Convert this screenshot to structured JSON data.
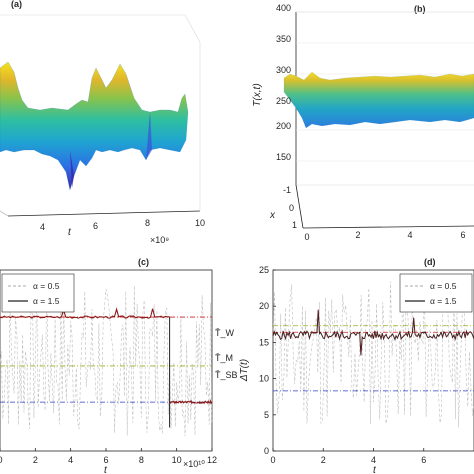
{
  "figure": {
    "panels": [
      "(a)",
      "(b)",
      "(c)",
      "(d)"
    ]
  },
  "chart_data": [
    {
      "panel": "(a)",
      "type": "surface",
      "x_axis": {
        "label": "t",
        "ticks": [
          "4",
          "6",
          "8",
          "10"
        ],
        "exponent": "×10⁹"
      },
      "colormap": "parula"
    },
    {
      "panel": "(b)",
      "type": "surface",
      "z_axis": {
        "label": "T(x,t)",
        "ticks": [
          "150",
          "200",
          "250",
          "300",
          "350",
          "400"
        ],
        "range": [
          150,
          400
        ]
      },
      "x_axis": {
        "label": "x",
        "ticks": [
          "-1",
          "0",
          "1"
        ]
      },
      "t_axis": {
        "ticks": [
          "0",
          "2",
          "4",
          "6"
        ]
      },
      "surface_level": [
        265,
        285
      ],
      "colormap": "parula"
    },
    {
      "panel": "(c)",
      "type": "line",
      "x_axis": {
        "label": "t",
        "ticks": [
          "0",
          "2",
          "4",
          "6",
          "8",
          "10",
          "12"
        ],
        "range": [
          0,
          12
        ],
        "exponent": "×10¹⁰"
      },
      "legend": [
        {
          "label": "α = 0.5",
          "style": "dashed",
          "color": "#aaaaaa"
        },
        {
          "label": "α = 1.5",
          "style": "solid",
          "color": "#222222"
        }
      ],
      "series": [
        {
          "name": "α = 1.5",
          "segments": [
            {
              "x": [
                0,
                9.6
              ],
              "y": 0.74
            },
            {
              "x": [
                9.6,
                12
              ],
              "y": 0.27
            }
          ]
        }
      ],
      "reference_lines": [
        {
          "label": "T̄_W",
          "y": 0.74,
          "color": "#d02020"
        },
        {
          "label": "T̄_M",
          "y": 0.47,
          "color": "#95b01a"
        },
        {
          "label": "T̄_SB",
          "y": 0.27,
          "color": "#2b3fc8"
        }
      ]
    },
    {
      "panel": "(d)",
      "type": "line",
      "ylabel": "ΔT(t)",
      "y_axis": {
        "ticks": [
          "0",
          "5",
          "10",
          "15",
          "20",
          "25"
        ],
        "range": [
          0,
          25
        ]
      },
      "x_axis": {
        "label": "t",
        "ticks": [
          "0",
          "2",
          "4",
          "6"
        ],
        "range": [
          0,
          8
        ]
      },
      "legend": [
        {
          "label": "α = 0.5",
          "style": "dashed",
          "color": "#aaaaaa"
        },
        {
          "label": "α = 1.5",
          "style": "solid",
          "color": "#222222"
        }
      ],
      "series": [
        {
          "name": "α = 1.5",
          "mean": 16.0
        }
      ],
      "reference_lines": [
        {
          "y": 17.3,
          "color": "#95b01a"
        },
        {
          "y": 16.4,
          "color": "#d02020"
        },
        {
          "y": 8.3,
          "color": "#2b3fc8"
        }
      ]
    }
  ]
}
